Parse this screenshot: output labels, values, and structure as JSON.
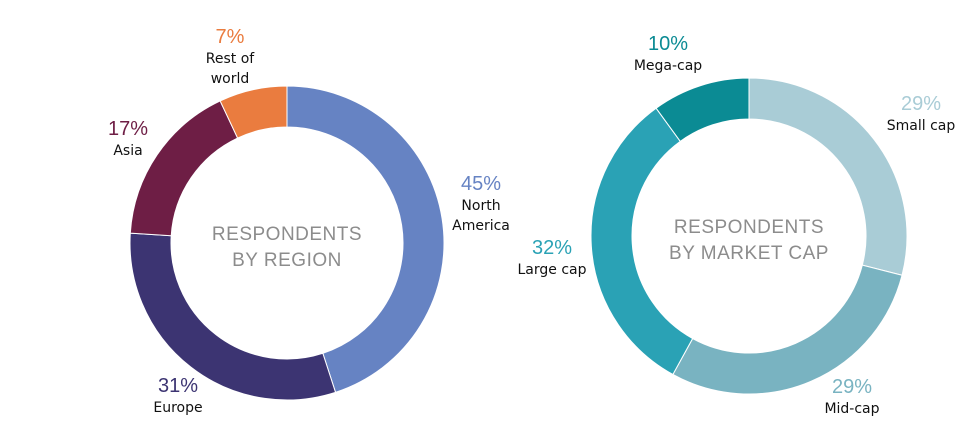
{
  "chart_data": [
    {
      "type": "pie",
      "style": "donut",
      "title": "RESPONDENTS BY REGION",
      "title_lines": [
        "RESPONDENTS",
        "BY REGION"
      ],
      "slices": [
        {
          "label": "North America",
          "label_lines": [
            "North",
            "America"
          ],
          "value": 45,
          "value_label": "45%",
          "color": "#6683c3"
        },
        {
          "label": "Europe",
          "label_lines": [
            "Europe"
          ],
          "value": 31,
          "value_label": "31%",
          "color": "#3c3472"
        },
        {
          "label": "Asia",
          "label_lines": [
            "Asia"
          ],
          "value": 17,
          "value_label": "17%",
          "color": "#6e1e45"
        },
        {
          "label": "Rest of world",
          "label_lines": [
            "Rest of",
            "world"
          ],
          "value": 7,
          "value_label": "7%",
          "color": "#ea7c3f"
        }
      ]
    },
    {
      "type": "pie",
      "style": "donut",
      "title": "RESPONDENTS BY MARKET CAP",
      "title_lines": [
        "RESPONDENTS",
        "BY MARKET CAP"
      ],
      "slices": [
        {
          "label": "Small cap",
          "label_lines": [
            "Small cap"
          ],
          "value": 29,
          "value_label": "29%",
          "color": "#a9ccd6"
        },
        {
          "label": "Mid-cap",
          "label_lines": [
            "Mid-cap"
          ],
          "value": 29,
          "value_label": "29%",
          "color": "#79b3c1"
        },
        {
          "label": "Large cap",
          "label_lines": [
            "Large cap"
          ],
          "value": 32,
          "value_label": "32%",
          "color": "#2aa2b5"
        },
        {
          "label": "Mega-cap",
          "label_lines": [
            "Mega-cap"
          ],
          "value": 10,
          "value_label": "10%",
          "color": "#0b8b94"
        }
      ]
    }
  ]
}
